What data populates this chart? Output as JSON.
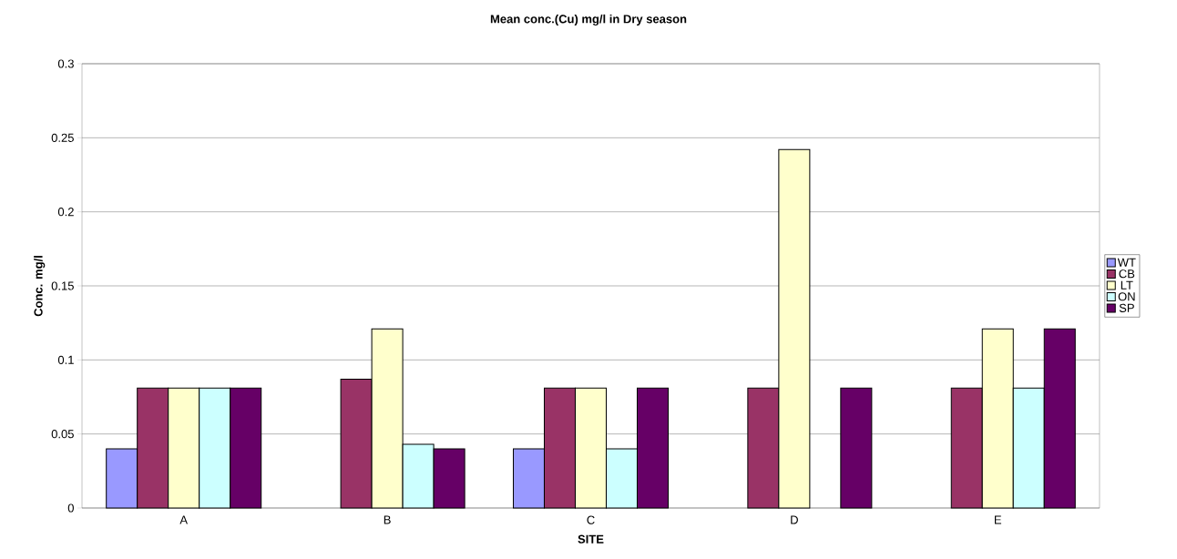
{
  "chart_data": {
    "type": "bar",
    "title": "Mean conc.(Cu) mg/l in Dry season",
    "xlabel": "SITE",
    "ylabel": "Conc. mg/l",
    "categories": [
      "A",
      "B",
      "C",
      "D",
      "E"
    ],
    "series": [
      {
        "name": "WT",
        "color": "#9999ff",
        "values": [
          0.04,
          null,
          0.04,
          null,
          null
        ]
      },
      {
        "name": "CB",
        "color": "#993366",
        "values": [
          0.081,
          0.087,
          0.081,
          0.081,
          0.081
        ]
      },
      {
        "name": "LT",
        "color": "#ffffcc",
        "values": [
          0.081,
          0.121,
          0.081,
          0.242,
          0.121
        ]
      },
      {
        "name": "ON",
        "color": "#ccffff",
        "values": [
          0.081,
          0.043,
          0.04,
          null,
          0.081
        ]
      },
      {
        "name": "SP",
        "color": "#660066",
        "values": [
          0.081,
          0.04,
          0.081,
          0.081,
          0.121
        ]
      }
    ],
    "ylim": [
      0,
      0.3
    ],
    "yticks": [
      0,
      0.05,
      0.1,
      0.15,
      0.2,
      0.25,
      0.3
    ],
    "grid": "y",
    "legend": "right"
  }
}
